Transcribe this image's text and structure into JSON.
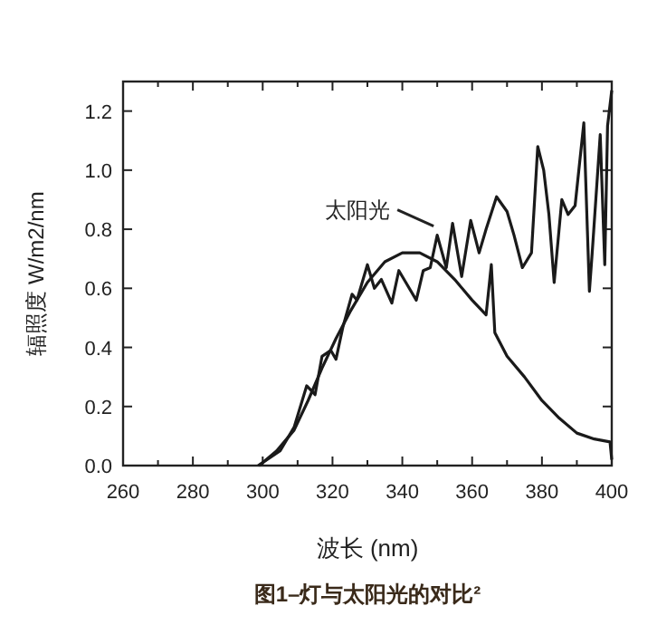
{
  "chart_data": {
    "type": "line",
    "title": "图1–灯与太阳光的对比²",
    "xlabel": "波长 (nm)",
    "ylabel": "辐照度 W/m2/nm",
    "xlim": [
      260,
      400
    ],
    "ylim": [
      0,
      1.3
    ],
    "xticks": [
      260,
      {
        "value": 270,
        "label": null
      },
      280,
      {
        "value": 290,
        "label": null
      },
      300,
      {
        "value": 310,
        "label": null
      },
      320,
      {
        "value": 330,
        "label": null
      },
      340,
      {
        "value": 350,
        "label": null
      },
      360,
      {
        "value": 370,
        "label": null
      },
      380,
      {
        "value": 390,
        "label": null
      },
      400
    ],
    "yticks": [
      {
        "value": 0,
        "label": "0.0"
      },
      0.2,
      0.4,
      0.6,
      0.8,
      {
        "value": 1,
        "label": "1.0"
      },
      1.2
    ],
    "grid": false,
    "marker": "none",
    "line_style": "solid",
    "annotations": [
      {
        "text": "太阳光",
        "x": 350,
        "y": 0.78
      }
    ],
    "series": [
      {
        "color": "#1a1a1a",
        "x": [
          298.7,
          305,
          309,
          312.6,
          315,
          317,
          319.5,
          321,
          323,
          325.6,
          327,
          330,
          332,
          334,
          337,
          339,
          341,
          344,
          346,
          348,
          350,
          352.6,
          354.4,
          357,
          359.6,
          362,
          364,
          367,
          370,
          372,
          374.4,
          377,
          378.8,
          380.5,
          382,
          383.5,
          385.7,
          387.5,
          389.5,
          392,
          393.6,
          394.4,
          396.7,
          398,
          398.8,
          400
        ],
        "values": [
          0,
          0.05,
          0.13,
          0.27,
          0.24,
          0.37,
          0.39,
          0.36,
          0.47,
          0.58,
          0.56,
          0.68,
          0.6,
          0.63,
          0.55,
          0.66,
          0.62,
          0.56,
          0.66,
          0.67,
          0.78,
          0.67,
          0.82,
          0.64,
          0.83,
          0.72,
          0.8,
          0.91,
          0.86,
          0.78,
          0.67,
          0.72,
          1.08,
          1.0,
          0.85,
          0.62,
          0.9,
          0.85,
          0.88,
          1.16,
          0.59,
          0.72,
          1.12,
          0.68,
          1.15,
          1.27
        ]
      },
      {
        "color": "#1a1a1a",
        "x": [
          299,
          304,
          309,
          313,
          317,
          321,
          325,
          330,
          335,
          340,
          345,
          350,
          355,
          360,
          364,
          365.5,
          366.5,
          370,
          375,
          380,
          385,
          390,
          395,
          399.5,
          400
        ],
        "values": [
          0,
          0.05,
          0.12,
          0.22,
          0.33,
          0.43,
          0.52,
          0.62,
          0.69,
          0.72,
          0.72,
          0.69,
          0.63,
          0.56,
          0.51,
          0.68,
          0.45,
          0.37,
          0.3,
          0.22,
          0.16,
          0.11,
          0.09,
          0.08,
          0.02
        ]
      }
    ]
  }
}
